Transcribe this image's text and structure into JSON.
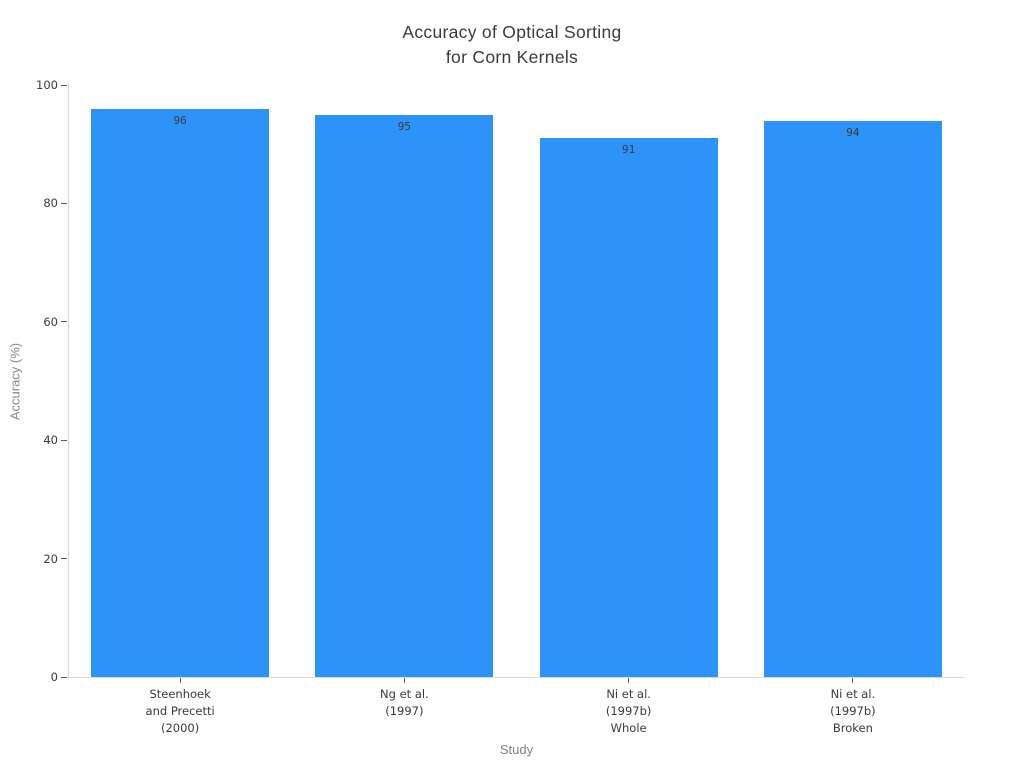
{
  "chart_data": {
    "type": "bar",
    "title": "Accuracy of Optical Sorting\nfor Corn Kernels",
    "xlabel": "Study",
    "ylabel": "Accuracy (%)",
    "categories": [
      "Steenhoek\nand Precetti\n(2000)",
      "Ng et al.\n(1997)",
      "Ni et al.\n(1997b)\nWhole",
      "Ni et al.\n(1997b)\nBroken"
    ],
    "values": [
      96,
      95,
      91,
      94
    ],
    "value_labels": [
      "96",
      "95",
      "91",
      "94"
    ],
    "ylim": [
      0,
      100
    ],
    "yticks": [
      "0",
      "20",
      "40",
      "60",
      "80",
      "100"
    ],
    "ytick_values": [
      0,
      20,
      40,
      60,
      80,
      100
    ],
    "grid": false,
    "legend": false,
    "bar_color": "#2e93f8",
    "axis_line_color": "#d9d9d9",
    "tick_color": "#5a5a5a",
    "text_color": "#3a3a3a",
    "muted_text_color": "#8a8a8a",
    "background_color": "#ffffff"
  }
}
